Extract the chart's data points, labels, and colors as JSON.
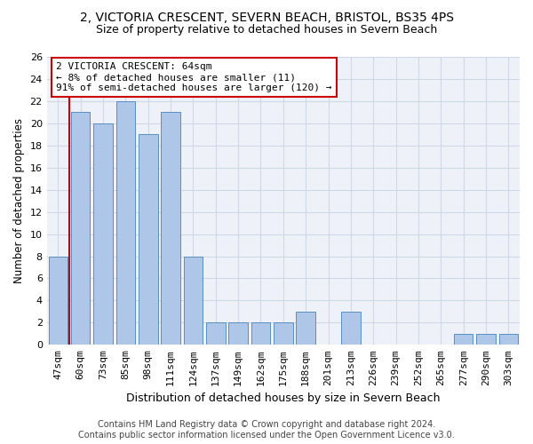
{
  "title1": "2, VICTORIA CRESCENT, SEVERN BEACH, BRISTOL, BS35 4PS",
  "title2": "Size of property relative to detached houses in Severn Beach",
  "xlabel": "Distribution of detached houses by size in Severn Beach",
  "ylabel": "Number of detached properties",
  "categories": [
    "47sqm",
    "60sqm",
    "73sqm",
    "85sqm",
    "98sqm",
    "111sqm",
    "124sqm",
    "137sqm",
    "149sqm",
    "162sqm",
    "175sqm",
    "188sqm",
    "201sqm",
    "213sqm",
    "226sqm",
    "239sqm",
    "252sqm",
    "265sqm",
    "277sqm",
    "290sqm",
    "303sqm"
  ],
  "values": [
    8,
    21,
    20,
    22,
    19,
    21,
    8,
    2,
    2,
    2,
    2,
    3,
    0,
    3,
    0,
    0,
    0,
    0,
    1,
    1,
    1
  ],
  "bar_color": "#aec6e8",
  "bar_edge_color": "#5a8fc0",
  "vline_color": "#cc0000",
  "annotation_line1": "2 VICTORIA CRESCENT: 64sqm",
  "annotation_line2": "← 8% of detached houses are smaller (11)",
  "annotation_line3": "91% of semi-detached houses are larger (120) →",
  "annotation_box_color": "#ffffff",
  "annotation_box_edge": "#cc0000",
  "footer1": "Contains HM Land Registry data © Crown copyright and database right 2024.",
  "footer2": "Contains public sector information licensed under the Open Government Licence v3.0.",
  "ylim": [
    0,
    26
  ],
  "yticks": [
    0,
    2,
    4,
    6,
    8,
    10,
    12,
    14,
    16,
    18,
    20,
    22,
    24,
    26
  ],
  "grid_color": "#d0d8e8",
  "background_color": "#eef2f8",
  "title1_fontsize": 10,
  "title2_fontsize": 9,
  "xlabel_fontsize": 9,
  "ylabel_fontsize": 8.5,
  "tick_fontsize": 8,
  "annotation_fontsize": 8,
  "footer_fontsize": 7
}
